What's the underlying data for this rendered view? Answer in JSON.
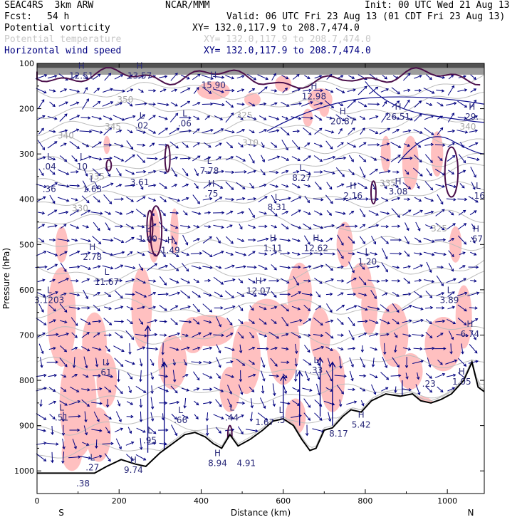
{
  "header": {
    "model": "SEAC4RS  3km ARW",
    "org": "NCAR/MMM",
    "init": "Init: 00 UTC Wed 21 Aug 13",
    "fcst_label": "Fcst:",
    "fcst_value": "54 h",
    "valid": "Valid: 06 UTC Fri 23 Aug 13 (01 CDT Fri 23 Aug 13)"
  },
  "fields": [
    {
      "name": "Potential vorticity",
      "xy": "XY= 132.0,117.9 to 208.7,474.0",
      "color": "#000000"
    },
    {
      "name": "Potential temperature",
      "xy": "XY= 132.0,117.9 to 208.7,474.0",
      "color": "#c8c8c8"
    },
    {
      "name": "Horizontal wind speed",
      "xy": "XY= 132.0,117.9 to 208.7,474.0",
      "color": "#000080"
    }
  ],
  "chart_data": {
    "type": "cross-section",
    "xlabel": "Distance (km)",
    "ylabel": "Pressure (hPa)",
    "xlim": [
      0,
      1090
    ],
    "ylim": [
      1050,
      100
    ],
    "x_ticks": [
      0,
      200,
      400,
      600,
      800,
      1000
    ],
    "x_tick_labels": [
      "0",
      "200",
      "400",
      "600",
      "800",
      "1000"
    ],
    "y_ticks": [
      100,
      200,
      300,
      400,
      500,
      600,
      700,
      800,
      900,
      1000
    ],
    "y_tick_labels": [
      "100",
      "200",
      "300",
      "400",
      "500",
      "600",
      "700",
      "800",
      "900",
      "1000"
    ],
    "left_end_label": "S",
    "right_end_label": "N",
    "colors": {
      "pv_fill": "#ffc0c0",
      "pv_contour": "#4b0f4b",
      "theta_contour": "#bdbdbd",
      "wind_vector": "#000080",
      "shear_contour": "#0c0c8c",
      "terrain": "#000000"
    },
    "theta_labels": [
      {
        "x": 215,
        "p": 180,
        "text": "350"
      },
      {
        "x": 185,
        "p": 240,
        "text": "345"
      },
      {
        "x": 70,
        "p": 260,
        "text": "340"
      },
      {
        "x": 520,
        "p": 275,
        "text": "310"
      },
      {
        "x": 145,
        "p": 350,
        "text": "335"
      },
      {
        "x": 105,
        "p": 420,
        "text": "330"
      },
      {
        "x": 505,
        "p": 215,
        "text": "325"
      },
      {
        "x": 1050,
        "p": 240,
        "text": "340"
      },
      {
        "x": 980,
        "p": 465,
        "text": "325"
      },
      {
        "x": 855,
        "p": 365,
        "text": "335"
      }
    ],
    "hl_markers": [
      {
        "x": 108,
        "p": 120,
        "kind": "H",
        "value": "12.51"
      },
      {
        "x": 250,
        "p": 120,
        "kind": "H",
        "value": "13.57"
      },
      {
        "x": 430,
        "p": 140,
        "kind": "H",
        "value": "15.90"
      },
      {
        "x": 675,
        "p": 165,
        "kind": "H",
        "value": "12.98"
      },
      {
        "x": 745,
        "p": 220,
        "kind": "H",
        "value": "20.87"
      },
      {
        "x": 880,
        "p": 210,
        "kind": "H",
        "value": "26.51"
      },
      {
        "x": 1060,
        "p": 210,
        "kind": "H",
        "value": "29."
      },
      {
        "x": 255,
        "p": 230,
        "kind": "L",
        "value": ".02"
      },
      {
        "x": 360,
        "p": 225,
        "kind": "L",
        "value": ".06"
      },
      {
        "x": 30,
        "p": 320,
        "kind": "L",
        "value": ".04"
      },
      {
        "x": 30,
        "p": 370,
        "kind": "",
        "value": ".36"
      },
      {
        "x": 110,
        "p": 320,
        "kind": "L",
        "value": "10"
      },
      {
        "x": 135,
        "p": 370,
        "kind": "L",
        "value": "1.63"
      },
      {
        "x": 250,
        "p": 355,
        "kind": "",
        "value": "3.61"
      },
      {
        "x": 420,
        "p": 330,
        "kind": "L",
        "value": "7.78"
      },
      {
        "x": 425,
        "p": 380,
        "kind": "H",
        "value": ".75"
      },
      {
        "x": 645,
        "p": 345,
        "kind": "L",
        "value": "8.27"
      },
      {
        "x": 770,
        "p": 385,
        "kind": "H",
        "value": "2.16"
      },
      {
        "x": 880,
        "p": 375,
        "kind": "H",
        "value": "3.08"
      },
      {
        "x": 1075,
        "p": 385,
        "kind": "L",
        "value": ".16"
      },
      {
        "x": 585,
        "p": 410,
        "kind": "L",
        "value": "8.31"
      },
      {
        "x": 270,
        "p": 480,
        "kind": "L",
        "value": "1.40"
      },
      {
        "x": 325,
        "p": 505,
        "kind": "H",
        "value": "1.49"
      },
      {
        "x": 575,
        "p": 500,
        "kind": "H",
        "value": "1.11"
      },
      {
        "x": 680,
        "p": 500,
        "kind": "H",
        "value": "12.62"
      },
      {
        "x": 1070,
        "p": 480,
        "kind": "H",
        "value": ".67"
      },
      {
        "x": 135,
        "p": 520,
        "kind": "H",
        "value": "2.78"
      },
      {
        "x": 805,
        "p": 530,
        "kind": "L",
        "value": "1.20"
      },
      {
        "x": 170,
        "p": 575,
        "kind": "L",
        "value": "11.67"
      },
      {
        "x": 540,
        "p": 595,
        "kind": "H",
        "value": "12.07"
      },
      {
        "x": 30,
        "p": 615,
        "kind": "L",
        "value": "3.1203"
      },
      {
        "x": 1005,
        "p": 615,
        "kind": "L",
        "value": "3.89"
      },
      {
        "x": 1055,
        "p": 690,
        "kind": "H",
        "value": "6.74"
      },
      {
        "x": 165,
        "p": 775,
        "kind": "L",
        "value": ".61"
      },
      {
        "x": 680,
        "p": 770,
        "kind": "L",
        "value": ".33"
      },
      {
        "x": 955,
        "p": 800,
        "kind": "",
        "value": ".23"
      },
      {
        "x": 1035,
        "p": 795,
        "kind": "H",
        "value": "1.05"
      },
      {
        "x": 60,
        "p": 875,
        "kind": "L",
        "value": ".51"
      },
      {
        "x": 350,
        "p": 880,
        "kind": "L",
        "value": ".66"
      },
      {
        "x": 475,
        "p": 875,
        "kind": "L",
        "value": ".44"
      },
      {
        "x": 595,
        "p": 880,
        "kind": "L",
        "value": ".5"
      },
      {
        "x": 555,
        "p": 885,
        "kind": "",
        "value": "1.67"
      },
      {
        "x": 790,
        "p": 890,
        "kind": "H",
        "value": "5.42"
      },
      {
        "x": 735,
        "p": 910,
        "kind": "",
        "value": "8.17"
      },
      {
        "x": 275,
        "p": 925,
        "kind": "L",
        "value": ".95"
      },
      {
        "x": 440,
        "p": 975,
        "kind": "H",
        "value": "8.94"
      },
      {
        "x": 510,
        "p": 975,
        "kind": "",
        "value": "4.91"
      },
      {
        "x": 135,
        "p": 985,
        "kind": "L",
        "value": ".27"
      },
      {
        "x": 235,
        "p": 990,
        "kind": "H",
        "value": "9.74"
      },
      {
        "x": 112,
        "p": 1020,
        "kind": "",
        "value": ".38"
      }
    ]
  }
}
